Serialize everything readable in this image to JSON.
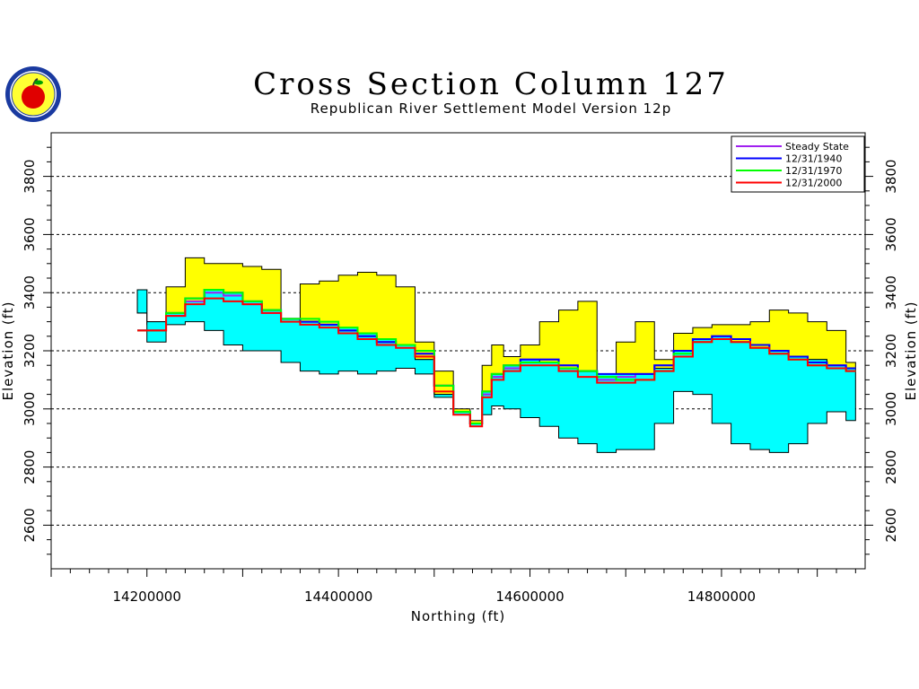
{
  "header": {
    "title": "Cross Section Column 127",
    "subtitle": "Republican River Settlement Model Version 12p"
  },
  "chart_data": {
    "type": "area",
    "title": "Cross Section Column 127",
    "subtitle": "Republican River Settlement Model Version 12p",
    "xlabel": "Northing (ft)",
    "ylabel": "Elevation (ft)",
    "xlim": [
      14100000,
      14950000
    ],
    "ylim": [
      2450000,
      3950000
    ],
    "ylim_ft": [
      2450,
      3950
    ],
    "xticks": [
      14200000,
      14400000,
      14600000,
      14800000
    ],
    "xtick_labels": [
      "14200000",
      "14400000",
      "14600000",
      "14800000"
    ],
    "yticks": [
      2600,
      2800,
      3000,
      3200,
      3400,
      3600,
      3800
    ],
    "ytick_labels": [
      "2600",
      "2800",
      "3000",
      "3200",
      "3400",
      "3600",
      "3800"
    ],
    "grid": "horizontal dashed at y ticks",
    "legend_position": "top-right",
    "colors": {
      "upper_layer": "#ffff00",
      "lower_layer": "#00ffff",
      "outline": "#000000",
      "Steady State": "#a020f0",
      "12/31/1940": "#0000ff",
      "12/31/1970": "#00ff00",
      "12/31/2000": "#ff0000"
    },
    "layers": {
      "x": [
        14190000,
        14210000,
        14230000,
        14250000,
        14270000,
        14290000,
        14310000,
        14330000,
        14350000,
        14370000,
        14390000,
        14410000,
        14430000,
        14450000,
        14470000,
        14490000,
        14510000,
        14530000,
        14545000,
        14555000,
        14565000,
        14580000,
        14600000,
        14620000,
        14640000,
        14660000,
        14680000,
        14700000,
        14720000,
        14740000,
        14760000,
        14780000,
        14800000,
        14820000,
        14840000,
        14860000,
        14880000,
        14900000,
        14920000,
        14940000
      ],
      "top": [
        3330,
        3290,
        3420,
        3520,
        3500,
        3500,
        3490,
        3480,
        3300,
        3430,
        3440,
        3460,
        3470,
        3460,
        3420,
        3230,
        3130,
        3000,
        2960,
        3150,
        3220,
        3180,
        3220,
        3300,
        3340,
        3370,
        3120,
        3230,
        3300,
        3170,
        3260,
        3280,
        3290,
        3290,
        3300,
        3340,
        3330,
        3300,
        3270,
        3160
      ],
      "middle": [
        3410,
        3300,
        3330,
        3370,
        3410,
        3400,
        3370,
        3340,
        3310,
        3300,
        3290,
        3280,
        3260,
        3240,
        3220,
        3170,
        3050,
        2990,
        2950,
        3060,
        3120,
        3150,
        3170,
        3160,
        3140,
        3130,
        3120,
        3120,
        3120,
        3140,
        3200,
        3240,
        3250,
        3230,
        3210,
        3200,
        3180,
        3170,
        3150,
        3140
      ],
      "bottom": [
        3330,
        3230,
        3290,
        3300,
        3270,
        3220,
        3200,
        3200,
        3160,
        3130,
        3120,
        3130,
        3120,
        3130,
        3140,
        3120,
        3040,
        2980,
        2940,
        2980,
        3010,
        3000,
        2970,
        2940,
        2900,
        2880,
        2850,
        2860,
        2860,
        2950,
        3060,
        3050,
        2950,
        2880,
        2860,
        2850,
        2880,
        2950,
        2990,
        2960
      ]
    },
    "series": [
      {
        "name": "Steady State",
        "x": [
          14190000,
          14210000,
          14230000,
          14250000,
          14270000,
          14290000,
          14310000,
          14330000,
          14350000,
          14370000,
          14390000,
          14410000,
          14430000,
          14450000,
          14470000,
          14490000,
          14510000,
          14530000,
          14545000,
          14555000,
          14565000,
          14580000,
          14600000,
          14620000,
          14640000,
          14660000,
          14680000,
          14700000,
          14720000,
          14740000,
          14760000,
          14780000,
          14800000,
          14820000,
          14840000,
          14860000,
          14880000,
          14900000,
          14920000,
          14940000
        ],
        "values": [
          3270,
          3270,
          3320,
          3370,
          3400,
          3390,
          3360,
          3330,
          3310,
          3300,
          3290,
          3270,
          3250,
          3230,
          3220,
          3190,
          3080,
          2990,
          2950,
          3050,
          3110,
          3140,
          3170,
          3170,
          3150,
          3130,
          3100,
          3110,
          3120,
          3150,
          3200,
          3240,
          3250,
          3240,
          3220,
          3200,
          3180,
          3160,
          3150,
          3140
        ]
      },
      {
        "name": "12/31/1940",
        "x": [
          14190000,
          14210000,
          14230000,
          14250000,
          14270000,
          14290000,
          14310000,
          14330000,
          14350000,
          14370000,
          14390000,
          14410000,
          14430000,
          14450000,
          14470000,
          14490000,
          14510000,
          14530000,
          14545000,
          14555000,
          14565000,
          14580000,
          14600000,
          14620000,
          14640000,
          14660000,
          14680000,
          14700000,
          14720000,
          14740000,
          14760000,
          14780000,
          14800000,
          14820000,
          14840000,
          14860000,
          14880000,
          14900000,
          14920000,
          14940000
        ],
        "values": [
          3270,
          3270,
          3330,
          3380,
          3410,
          3400,
          3370,
          3340,
          3310,
          3300,
          3290,
          3270,
          3250,
          3230,
          3220,
          3190,
          3080,
          2990,
          2950,
          3060,
          3120,
          3150,
          3170,
          3170,
          3150,
          3130,
          3120,
          3120,
          3120,
          3150,
          3200,
          3240,
          3250,
          3240,
          3220,
          3200,
          3180,
          3160,
          3150,
          3140
        ]
      },
      {
        "name": "12/31/1970",
        "x": [
          14190000,
          14210000,
          14230000,
          14250000,
          14270000,
          14290000,
          14310000,
          14330000,
          14350000,
          14370000,
          14390000,
          14410000,
          14430000,
          14450000,
          14470000,
          14490000,
          14510000,
          14530000,
          14545000,
          14555000,
          14565000,
          14580000,
          14600000,
          14620000,
          14640000,
          14660000,
          14680000,
          14700000,
          14720000,
          14740000,
          14760000,
          14780000,
          14800000,
          14820000,
          14840000,
          14860000,
          14880000,
          14900000,
          14920000,
          14940000
        ],
        "values": [
          3270,
          3270,
          3330,
          3380,
          3410,
          3400,
          3370,
          3340,
          3310,
          3310,
          3300,
          3280,
          3260,
          3240,
          3220,
          3200,
          3080,
          2990,
          2950,
          3060,
          3120,
          3150,
          3160,
          3160,
          3140,
          3130,
          3110,
          3100,
          3100,
          3130,
          3190,
          3230,
          3240,
          3230,
          3210,
          3190,
          3170,
          3150,
          3140,
          3130
        ]
      },
      {
        "name": "12/31/2000",
        "x": [
          14190000,
          14210000,
          14230000,
          14250000,
          14270000,
          14290000,
          14310000,
          14330000,
          14350000,
          14370000,
          14390000,
          14410000,
          14430000,
          14450000,
          14470000,
          14490000,
          14510000,
          14530000,
          14545000,
          14555000,
          14565000,
          14580000,
          14600000,
          14620000,
          14640000,
          14660000,
          14680000,
          14700000,
          14720000,
          14740000,
          14760000,
          14780000,
          14800000,
          14820000,
          14840000,
          14860000,
          14880000,
          14900000,
          14920000,
          14940000
        ],
        "values": [
          3270,
          3270,
          3320,
          3360,
          3380,
          3370,
          3360,
          3330,
          3300,
          3290,
          3280,
          3260,
          3240,
          3220,
          3210,
          3180,
          3060,
          2980,
          2940,
          3040,
          3100,
          3130,
          3150,
          3150,
          3130,
          3110,
          3090,
          3090,
          3100,
          3130,
          3180,
          3230,
          3240,
          3230,
          3210,
          3190,
          3170,
          3150,
          3140,
          3130
        ]
      }
    ],
    "legend": [
      "Steady State",
      "12/31/1940",
      "12/31/1970",
      "12/31/2000"
    ]
  }
}
